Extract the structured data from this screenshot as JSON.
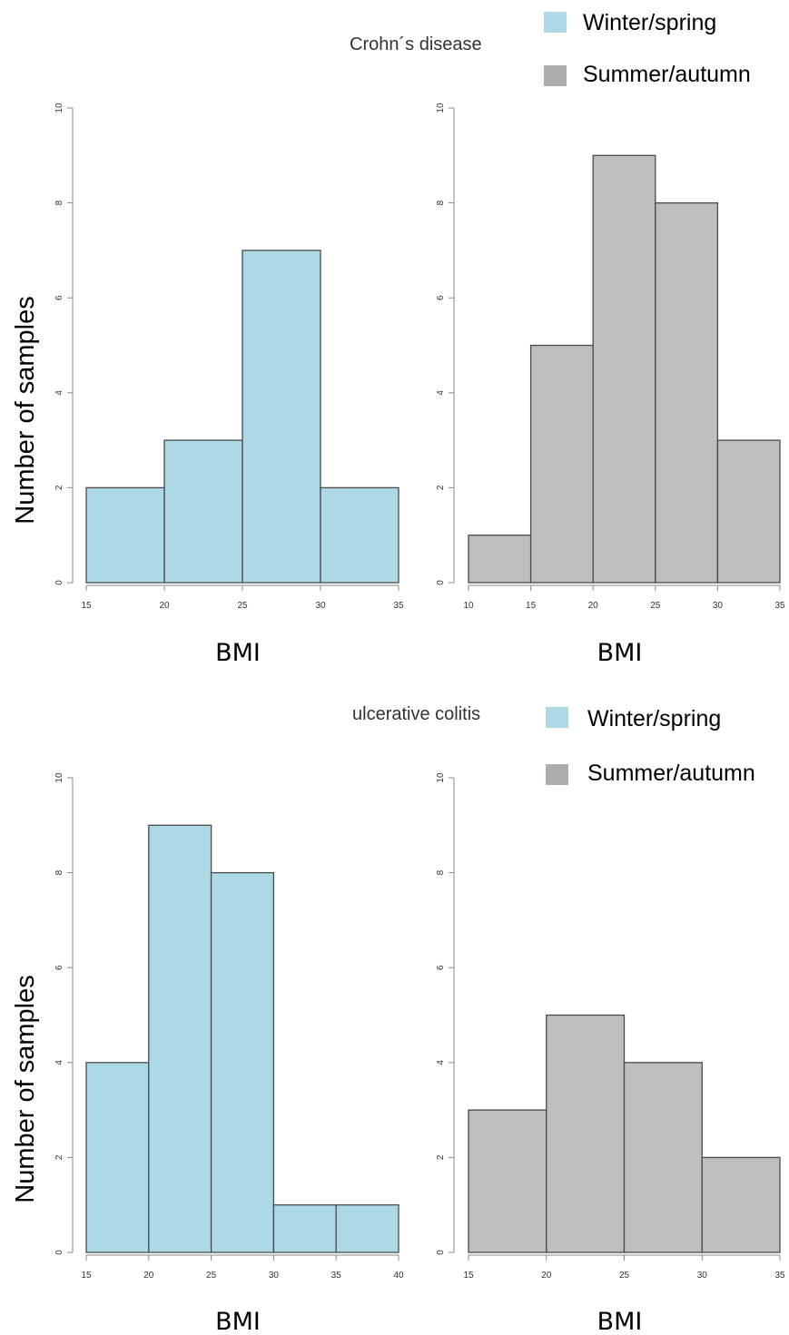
{
  "sections": [
    {
      "title": "Crohn´s disease",
      "ylabel": "Number of samples",
      "legend": [
        {
          "label": "Winter/spring",
          "color": "#add8e6"
        },
        {
          "label": "Summer/autumn",
          "color": "#b0acac"
        }
      ]
    },
    {
      "title": "ulcerative colitis",
      "ylabel": "Number of samples",
      "legend": [
        {
          "label": "Winter/spring",
          "color": "#add8e6"
        },
        {
          "label": "Summer/autumn",
          "color": "#b0acac"
        }
      ]
    }
  ],
  "chart_data": [
    {
      "type": "bar",
      "section": "Crohn´s disease",
      "series": "Winter/spring",
      "xlabel": "BMI",
      "bin_edges": [
        15,
        20,
        25,
        30,
        35
      ],
      "values": [
        2,
        3,
        7,
        2
      ],
      "xlim": [
        15,
        35
      ],
      "xticks": [
        15,
        20,
        25,
        30,
        35
      ],
      "ylim": [
        0,
        10
      ],
      "yticks": [
        0,
        2,
        4,
        6,
        8,
        10
      ],
      "fill": "#add8e6",
      "grid": false
    },
    {
      "type": "bar",
      "section": "Crohn´s disease",
      "series": "Summer/autumn",
      "xlabel": "BMI",
      "bin_edges": [
        10,
        15,
        20,
        25,
        30,
        35
      ],
      "values": [
        1,
        5,
        9,
        8,
        3
      ],
      "xlim": [
        10,
        35
      ],
      "xticks": [
        10,
        15,
        20,
        25,
        30,
        35
      ],
      "ylim": [
        0,
        10
      ],
      "yticks": [
        0,
        2,
        4,
        6,
        8,
        10
      ],
      "fill": "#bebebe",
      "grid": false
    },
    {
      "type": "bar",
      "section": "ulcerative colitis",
      "series": "Winter/spring",
      "xlabel": "BMI",
      "bin_edges": [
        15,
        20,
        25,
        30,
        35,
        40
      ],
      "values": [
        4,
        9,
        8,
        1,
        1
      ],
      "xlim": [
        15,
        40
      ],
      "xticks": [
        15,
        20,
        25,
        30,
        35,
        40
      ],
      "ylim": [
        0,
        10
      ],
      "yticks": [
        0,
        2,
        4,
        6,
        8,
        10
      ],
      "fill": "#add8e6",
      "grid": false
    },
    {
      "type": "bar",
      "section": "ulcerative colitis",
      "series": "Summer/autumn",
      "xlabel": "BMI",
      "bin_edges": [
        15,
        20,
        25,
        30,
        35
      ],
      "values": [
        3,
        5,
        4,
        2
      ],
      "xlim": [
        15,
        35
      ],
      "xticks": [
        15,
        20,
        25,
        30,
        35
      ],
      "ylim": [
        0,
        10
      ],
      "yticks": [
        0,
        2,
        4,
        6,
        8,
        10
      ],
      "fill": "#bebebe",
      "grid": false
    }
  ]
}
